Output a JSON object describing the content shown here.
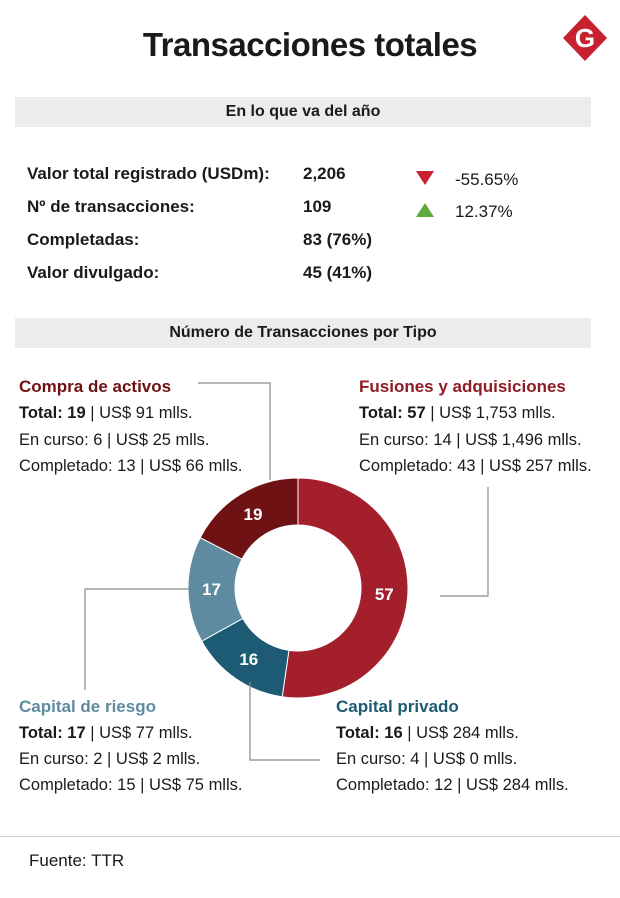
{
  "header": {
    "title": "Transacciones totales",
    "logo_letter": "G"
  },
  "section_ytd": {
    "band_label": "En lo que va del año",
    "rows": [
      {
        "label": "Valor total registrado (USDm):",
        "value": "2,206",
        "change": "-55.65%",
        "direction": "down"
      },
      {
        "label": "Nº de transacciones:",
        "value": "109",
        "change": "12.37%",
        "direction": "up"
      },
      {
        "label": "Completadas:",
        "value": "83 (76%)"
      },
      {
        "label": "Valor divulgado:",
        "value": "45 (41%)"
      }
    ]
  },
  "section_type": {
    "band_label": "Número de Transacciones por Tipo"
  },
  "categories": {
    "compra": {
      "name": "Compra de activos",
      "total_label": "Total: 19",
      "total_rest": " | US$ 91 mlls.",
      "en_curso": "En curso: 6 | US$ 25 mlls.",
      "completado": "Completado: 13 | US$ 66 mlls."
    },
    "fusiones": {
      "name": "Fusiones y adquisiciones",
      "total_label": "Total: 57",
      "total_rest": " |  US$ 1,753 mlls.",
      "en_curso": "En curso: 14 | US$ 1,496 mlls.",
      "completado": "Completado: 43 |  US$ 257 mlls."
    },
    "riesgo": {
      "name": "Capital de riesgo",
      "total_label": "Total: 17",
      "total_rest": " | US$ 77 mlls.",
      "en_curso": "En curso: 2 | US$ 2 mlls.",
      "completado": "Completado: 15 | US$ 75 mlls."
    },
    "privado": {
      "name": "Capital privado",
      "total_label": "Total: 16",
      "total_rest": " | US$ 284 mlls.",
      "en_curso": "En curso: 4 | US$ 0 mlls.",
      "completado": "Completado: 12 | US$ 284 mlls."
    }
  },
  "chart_data": {
    "type": "pie",
    "title": "Número de Transacciones por Tipo",
    "donut": true,
    "slices": [
      {
        "name": "Fusiones y adquisiciones",
        "value": 57,
        "color": "#a31f2b"
      },
      {
        "name": "Capital privado",
        "value": 16,
        "color": "#1d5a73"
      },
      {
        "name": "Capital de riesgo",
        "value": 17,
        "color": "#5f8ba0"
      },
      {
        "name": "Compra de activos",
        "value": 19,
        "color": "#6e1214"
      }
    ]
  },
  "colors": {
    "down": "#c8202f",
    "up": "#5faa3c",
    "fusiones_title": "#8e1c24",
    "compra_title": "#6e1214",
    "riesgo_title": "#5f8ba0",
    "privado_title": "#1d5a73",
    "logo": "#c8202f"
  },
  "footer": {
    "source": "Fuente: TTR"
  }
}
